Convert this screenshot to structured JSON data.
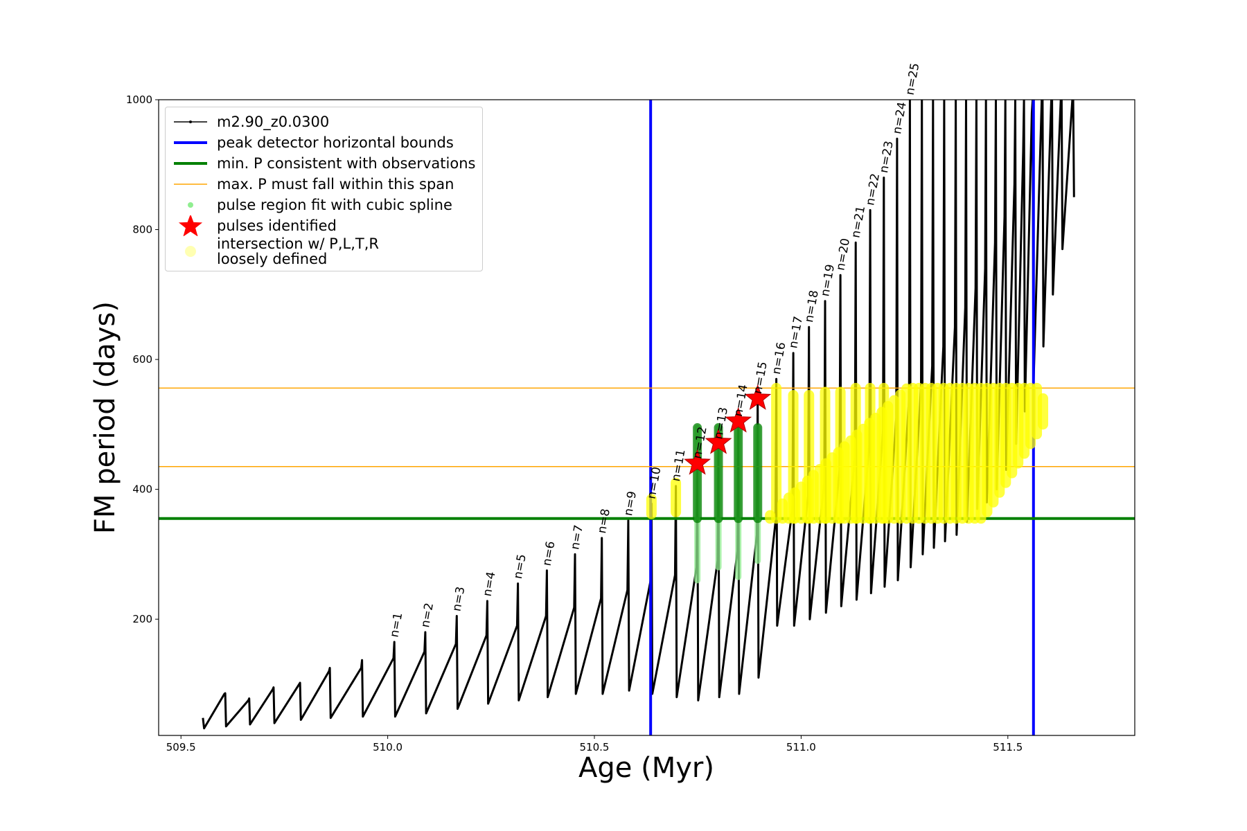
{
  "chart_data": {
    "type": "line",
    "xlabel": "Age (Myr)",
    "ylabel": "FM period (days)",
    "xlim": [
      509.446,
      511.807
    ],
    "ylim": [
      21,
      1000
    ],
    "xticks": [
      {
        "value": 509.5,
        "label": "509.5"
      },
      {
        "value": 510,
        "label": "510.0"
      },
      {
        "value": 510.5,
        "label": "510.5"
      },
      {
        "value": 511,
        "label": "511.0"
      },
      {
        "value": 511.5,
        "label": "511.5"
      }
    ],
    "yticks": [
      200,
      400,
      600,
      800,
      1000
    ],
    "series": [
      {
        "name": "m2.90_z0.0300",
        "type": "line",
        "color": "#000000",
        "linewidth": 3,
        "x": [
          509.553,
          509.556,
          509.605,
          509.607,
          509.609,
          509.663,
          509.665,
          509.667,
          509.722,
          509.724,
          509.726,
          509.786,
          509.788,
          509.79,
          509.858,
          509.86,
          509.862,
          509.936,
          509.938,
          509.94,
          510.014,
          510.016,
          510.018,
          510.089,
          510.091,
          510.093,
          510.165,
          510.167,
          510.169,
          510.239,
          510.241,
          510.243,
          510.313,
          510.315,
          510.317,
          510.383,
          510.385,
          510.387,
          510.451,
          510.453,
          510.455,
          510.516,
          510.518,
          510.52,
          510.58,
          510.582,
          510.584,
          510.636,
          510.638,
          510.64,
          510.695,
          510.697,
          510.699,
          510.747,
          510.749,
          510.751,
          510.798,
          510.8,
          510.802,
          510.846,
          510.848,
          510.85,
          510.893,
          510.895,
          510.897,
          510.938,
          510.94,
          510.942,
          510.979,
          510.981,
          510.983,
          511.017,
          511.019,
          511.021,
          511.056,
          511.058,
          511.06,
          511.093,
          511.095,
          511.097,
          511.13,
          511.132,
          511.134,
          511.165,
          511.167,
          511.169,
          511.198,
          511.2,
          511.202,
          511.23,
          511.232,
          511.234,
          511.261,
          511.263,
          511.265,
          511.29,
          511.292,
          511.294,
          511.317,
          511.319,
          511.321,
          511.344,
          511.346,
          511.348,
          511.372,
          511.374,
          511.376,
          511.397,
          511.399,
          511.401,
          511.422,
          511.424,
          511.426,
          511.445,
          511.447,
          511.449,
          511.469,
          511.471,
          511.473,
          511.492,
          511.494,
          511.496,
          511.516,
          511.518,
          511.52,
          511.537,
          511.539,
          511.541,
          511.558,
          511.56,
          511.562,
          511.582,
          511.584,
          511.586,
          511.605,
          511.607,
          511.609,
          511.628,
          511.63,
          511.632,
          511.656,
          511.658,
          511.66
        ],
        "y": [
          48,
          32,
          85,
          86,
          35,
          75,
          78,
          38,
          92,
          95,
          40,
          100,
          102,
          45,
          120,
          125,
          48,
          125,
          137,
          50,
          140,
          165,
          50,
          150,
          180,
          55,
          162,
          205,
          62,
          175,
          228,
          70,
          190,
          255,
          75,
          205,
          275,
          80,
          218,
          300,
          85,
          232,
          325,
          85,
          245,
          352,
          90,
          260,
          378,
          85,
          268,
          405,
          80,
          280,
          440,
          75,
          290,
          470,
          80,
          305,
          505,
          85,
          330,
          540,
          110,
          350,
          570,
          190,
          370,
          610,
          190,
          390,
          650,
          200,
          410,
          690,
          210,
          430,
          730,
          220,
          450,
          780,
          230,
          470,
          830,
          240,
          490,
          880,
          250,
          510,
          940,
          260,
          540,
          1000,
          280,
          560,
          1000,
          300,
          590,
          1000,
          310,
          620,
          1000,
          320,
          650,
          1000,
          330,
          680,
          1000,
          350,
          710,
          1000,
          370,
          740,
          1000,
          380,
          780,
          1000,
          400,
          820,
          1000,
          430,
          870,
          1000,
          470,
          920,
          1000,
          520,
          980,
          1000,
          560,
          1000,
          1000,
          620,
          1000,
          1000,
          700,
          1000,
          1000,
          770,
          1000,
          1000,
          850
        ]
      },
      {
        "name": "peak detector horizontal bounds",
        "type": "vline",
        "color": "#0000ff",
        "linewidth": 4,
        "x": [
          510.636,
          511.562
        ]
      },
      {
        "name": "min. P consistent with observations",
        "type": "hline",
        "color": "#008000",
        "linewidth": 4,
        "y": [
          355
        ]
      },
      {
        "name": "max. P must fall within this span",
        "type": "hline",
        "color": "#ffa500",
        "linewidth": 1.5,
        "y": [
          435,
          556
        ]
      },
      {
        "name": "pulse region fit with cubic spline",
        "type": "segments",
        "color": "#90ee90",
        "linewidth": 9,
        "x": [
          510.749,
          510.8,
          510.848,
          510.895
        ],
        "low": [
          260,
          280,
          265,
          290
        ],
        "high": [
          495,
          495,
          495,
          495
        ]
      },
      {
        "type": "segments",
        "color": "#008000",
        "linewidth": 13,
        "x": [
          510.749,
          510.8,
          510.848,
          510.895
        ],
        "low": [
          355,
          355,
          355,
          355
        ],
        "high": [
          495,
          495,
          495,
          495
        ]
      },
      {
        "name": "pulses identified",
        "type": "scatter",
        "color": "#ff0000",
        "x": [
          510.749,
          510.8,
          510.848,
          510.895
        ],
        "y": [
          440,
          472,
          505,
          540
        ]
      },
      {
        "name": "intersection w/ P,L,T,R\nloosely defined",
        "type": "segments",
        "color": "#ffff00",
        "linewidth": 15,
        "x": [
          510.638,
          510.697,
          510.94,
          510.981,
          511.019,
          511.058,
          511.095,
          511.132,
          511.167,
          511.2,
          510.925,
          510.955,
          510.97,
          510.985,
          511.0,
          511.015,
          511.03,
          511.045,
          511.06,
          511.075,
          511.09,
          511.105,
          511.12,
          511.135,
          511.15,
          511.165,
          511.18,
          511.195,
          511.21,
          511.225,
          511.24,
          511.255,
          511.27,
          511.285,
          511.3,
          511.315,
          511.33,
          511.345,
          511.36,
          511.375,
          511.39,
          511.405,
          511.42,
          511.435,
          511.45,
          511.465,
          511.48,
          511.495,
          511.51,
          511.525,
          511.54,
          511.555,
          511.57,
          511.585
        ],
        "low": [
          362,
          365,
          355,
          355,
          355,
          355,
          355,
          355,
          355,
          355,
          355,
          355,
          355,
          355,
          355,
          355,
          355,
          355,
          355,
          355,
          355,
          355,
          355,
          355,
          355,
          355,
          355,
          355,
          355,
          355,
          355,
          355,
          355,
          355,
          355,
          355,
          355,
          355,
          355,
          355,
          355,
          355,
          355,
          355,
          365,
          380,
          395,
          410,
          425,
          440,
          455,
          470,
          485,
          500
        ],
        "high": [
          385,
          410,
          556,
          545,
          545,
          550,
          550,
          556,
          556,
          556,
          360,
          378,
          387,
          395,
          404,
          413,
          422,
          431,
          440,
          449,
          457,
          466,
          475,
          484,
          493,
          502,
          510,
          519,
          528,
          537,
          546,
          555,
          556,
          556,
          556,
          556,
          556,
          556,
          556,
          556,
          556,
          556,
          556,
          556,
          556,
          556,
          556,
          556,
          556,
          556,
          556,
          556,
          556,
          540
        ]
      }
    ],
    "annotations": [
      {
        "text": "n=1",
        "x": 510.016,
        "y": 165
      },
      {
        "text": "n=2",
        "x": 510.091,
        "y": 180
      },
      {
        "text": "n=3",
        "x": 510.167,
        "y": 205
      },
      {
        "text": "n=4",
        "x": 510.241,
        "y": 228
      },
      {
        "text": "n=5",
        "x": 510.315,
        "y": 255
      },
      {
        "text": "n=6",
        "x": 510.385,
        "y": 275
      },
      {
        "text": "n=7",
        "x": 510.453,
        "y": 300
      },
      {
        "text": "n=8",
        "x": 510.518,
        "y": 325
      },
      {
        "text": "n=9",
        "x": 510.582,
        "y": 352
      },
      {
        "text": "n=10",
        "x": 510.638,
        "y": 378
      },
      {
        "text": "n=11",
        "x": 510.697,
        "y": 405
      },
      {
        "text": "n=12",
        "x": 510.749,
        "y": 440
      },
      {
        "text": "n=13",
        "x": 510.8,
        "y": 470
      },
      {
        "text": "n=14",
        "x": 510.848,
        "y": 505
      },
      {
        "text": "n=15",
        "x": 510.895,
        "y": 540
      },
      {
        "text": "n=16",
        "x": 510.94,
        "y": 570
      },
      {
        "text": "n=17",
        "x": 510.981,
        "y": 610
      },
      {
        "text": "n=18",
        "x": 511.019,
        "y": 650
      },
      {
        "text": "n=19",
        "x": 511.058,
        "y": 690
      },
      {
        "text": "n=20",
        "x": 511.095,
        "y": 730
      },
      {
        "text": "n=21",
        "x": 511.132,
        "y": 780
      },
      {
        "text": "n=22",
        "x": 511.167,
        "y": 830
      },
      {
        "text": "n=23",
        "x": 511.2,
        "y": 880
      },
      {
        "text": "n=24",
        "x": 511.232,
        "y": 940
      },
      {
        "text": "n=25",
        "x": 511.263,
        "y": 1000
      }
    ]
  }
}
